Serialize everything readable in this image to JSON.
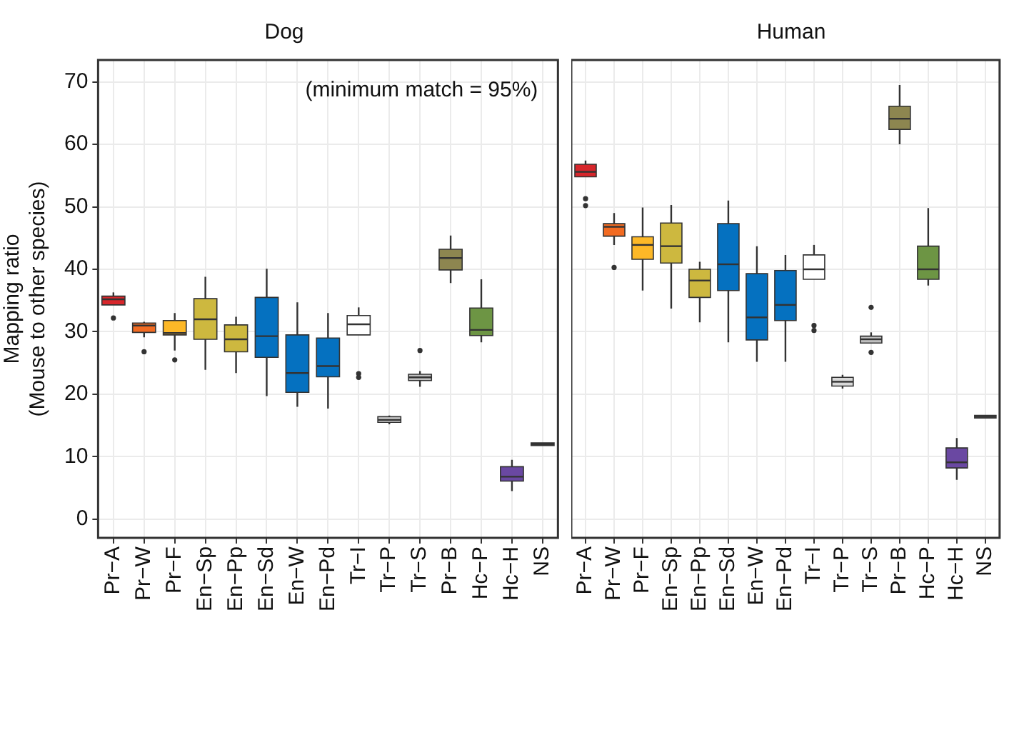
{
  "chart_data": [
    {
      "type": "box",
      "title": "Dog",
      "ylabel": "Mapping ratio\n(Mouse to other species)",
      "annotations": [
        "(minimum match = 95%)"
      ],
      "categories": [
        "Pr−A",
        "Pr−W",
        "Pr−F",
        "En−Sp",
        "En−Pp",
        "En−Sd",
        "En−W",
        "En−Pd",
        "Tr−I",
        "Tr−P",
        "Tr−S",
        "Pr−B",
        "Hc−P",
        "Hc−H",
        "NS"
      ],
      "colors": [
        "#d7262b",
        "#f26b22",
        "#fdb827",
        "#cdb83f",
        "#cdb83f",
        "#0571c0",
        "#0571c0",
        "#0571c0",
        "#ffffff",
        "#d9d9d9",
        "#bfbfbf",
        "#8d8650",
        "#6d9544",
        "#6a48a2",
        "#7f7f7f"
      ],
      "boxes": [
        {
          "low": 34.3,
          "q1": 34.3,
          "median": 35.2,
          "q3": 35.7,
          "high": 36.3,
          "outliers": [
            32.2
          ]
        },
        {
          "low": 29.1,
          "q1": 29.9,
          "median": 31,
          "q3": 31.4,
          "high": 31.6,
          "outliers": [
            26.8
          ]
        },
        {
          "low": 27,
          "q1": 29.5,
          "median": 29.8,
          "q3": 31.8,
          "high": 33,
          "outliers": [
            25.5
          ]
        },
        {
          "low": 23.9,
          "q1": 28.8,
          "median": 32,
          "q3": 35.3,
          "high": 38.8
        },
        {
          "low": 23.4,
          "q1": 26.8,
          "median": 28.8,
          "q3": 31.1,
          "high": 32.4
        },
        {
          "low": 19.7,
          "q1": 25.9,
          "median": 29.3,
          "q3": 35.5,
          "high": 40.1
        },
        {
          "low": 18,
          "q1": 20.3,
          "median": 23.4,
          "q3": 29.5,
          "high": 34.7
        },
        {
          "low": 17.7,
          "q1": 22.8,
          "median": 24.5,
          "q3": 29,
          "high": 33
        },
        {
          "low": 29.5,
          "q1": 29.5,
          "median": 31.2,
          "q3": 32.6,
          "high": 33.9,
          "outliers": [
            23.3,
            22.7
          ]
        },
        {
          "low": 15.2,
          "q1": 15.5,
          "median": 15.9,
          "q3": 16.4,
          "high": 16.6
        },
        {
          "low": 21.2,
          "q1": 22.2,
          "median": 22.7,
          "q3": 23.2,
          "high": 23.7,
          "outliers": [
            27
          ]
        },
        {
          "low": 37.8,
          "q1": 39.9,
          "median": 41.8,
          "q3": 43.2,
          "high": 45.4
        },
        {
          "low": 28.3,
          "q1": 29.4,
          "median": 30.3,
          "q3": 33.8,
          "high": 38.4
        },
        {
          "low": 4.5,
          "q1": 6.1,
          "median": 6.8,
          "q3": 8.4,
          "high": 9.5
        },
        {
          "low": 11.8,
          "q1": 11.8,
          "median": 12,
          "q3": 12.2,
          "high": 12.2
        }
      ],
      "ylim": [
        -3,
        73.5
      ],
      "yticks": [
        0,
        10,
        20,
        30,
        40,
        50,
        60,
        70
      ],
      "grid": true
    },
    {
      "type": "box",
      "title": "Human",
      "categories": [
        "Pr−A",
        "Pr−W",
        "Pr−F",
        "En−Sp",
        "En−Pp",
        "En−Sd",
        "En−W",
        "En−Pd",
        "Tr−I",
        "Tr−P",
        "Tr−S",
        "Pr−B",
        "Hc−P",
        "Hc−H",
        "NS"
      ],
      "colors": [
        "#d7262b",
        "#f26b22",
        "#fdb827",
        "#cdb83f",
        "#cdb83f",
        "#0571c0",
        "#0571c0",
        "#0571c0",
        "#ffffff",
        "#d9d9d9",
        "#bfbfbf",
        "#8d8650",
        "#6d9544",
        "#6a48a2",
        "#7f7f7f"
      ],
      "boxes": [
        {
          "low": 54.8,
          "q1": 54.8,
          "median": 55.6,
          "q3": 56.8,
          "high": 57.4,
          "outliers": [
            51.3,
            50.2
          ]
        },
        {
          "low": 43.9,
          "q1": 45.3,
          "median": 46.8,
          "q3": 47.3,
          "high": 49,
          "outliers": [
            40.3
          ]
        },
        {
          "low": 36.6,
          "q1": 41.6,
          "median": 43.9,
          "q3": 45.2,
          "high": 49.9
        },
        {
          "low": 33.7,
          "q1": 41,
          "median": 43.7,
          "q3": 47.4,
          "high": 50.3
        },
        {
          "low": 31.5,
          "q1": 35.5,
          "median": 38.2,
          "q3": 40,
          "high": 41.2
        },
        {
          "low": 28.3,
          "q1": 36.6,
          "median": 40.8,
          "q3": 47.3,
          "high": 51
        },
        {
          "low": 25.2,
          "q1": 28.7,
          "median": 32.3,
          "q3": 39.3,
          "high": 43.7
        },
        {
          "low": 25.2,
          "q1": 31.8,
          "median": 34.3,
          "q3": 39.8,
          "high": 42.3
        },
        {
          "low": 38.4,
          "q1": 38.4,
          "median": 40,
          "q3": 42.3,
          "high": 43.9,
          "outliers": [
            31,
            30.2
          ]
        },
        {
          "low": 20.9,
          "q1": 21.3,
          "median": 22,
          "q3": 22.7,
          "high": 23.1
        },
        {
          "low": 28.2,
          "q1": 28.2,
          "median": 28.8,
          "q3": 29.3,
          "high": 29.9,
          "outliers": [
            33.9,
            26.7
          ]
        },
        {
          "low": 60,
          "q1": 62.4,
          "median": 64.1,
          "q3": 66.1,
          "high": 69.5
        },
        {
          "low": 37.4,
          "q1": 38.4,
          "median": 40,
          "q3": 43.7,
          "high": 49.8
        },
        {
          "low": 6.3,
          "q1": 8.2,
          "median": 9.1,
          "q3": 11.4,
          "high": 13
        },
        {
          "low": 16.2,
          "q1": 16.2,
          "median": 16.4,
          "q3": 16.6,
          "high": 16.6
        }
      ],
      "ylim": [
        -3,
        73.5
      ],
      "yticks": [
        0,
        10,
        20,
        30,
        40,
        50,
        60,
        70
      ],
      "grid": true,
      "tick_labels": "x"
    }
  ]
}
